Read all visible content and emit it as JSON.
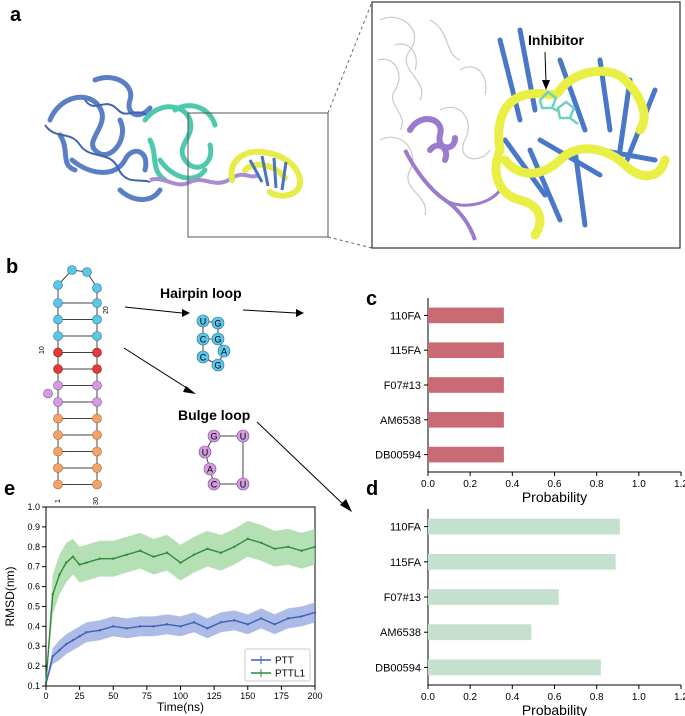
{
  "panels": {
    "a": "a",
    "b": "b",
    "c": "c",
    "d": "d",
    "e": "e"
  },
  "panel_a": {
    "zoom_label": "Inhibitor"
  },
  "panel_b": {
    "hairpin_label": "Hairpin loop",
    "bulge_label": "Bulge loop",
    "index_labels": {
      "n1": "1",
      "n10": "10",
      "n20": "20",
      "n30": "30"
    },
    "hairpin_nucleotides": [
      "U",
      "G",
      "C",
      "G",
      "C",
      "A",
      "G"
    ],
    "bulge_nucleotides": [
      "G",
      "U",
      "U",
      "A",
      "C",
      "U"
    ],
    "colors": {
      "loop": "#5cc6e8",
      "stem_red": "#e03a3a",
      "bulge": "#d39be0",
      "stem_orange": "#f2a36b"
    }
  },
  "chart_data": [
    {
      "id": "c",
      "type": "bar",
      "orientation": "horizontal",
      "categories": [
        "110FA",
        "115FA",
        "F07#13",
        "AM6538",
        "DB00594"
      ],
      "values": [
        0.36,
        0.36,
        0.36,
        0.36,
        0.36
      ],
      "xlabel": "Probability",
      "xlim": [
        0,
        1.2
      ],
      "xticks": [
        "0.0",
        "0.2",
        "0.4",
        "0.6",
        "0.8",
        "1.0",
        "1.2"
      ],
      "color": "#c96b74"
    },
    {
      "id": "d",
      "type": "bar",
      "orientation": "horizontal",
      "categories": [
        "110FA",
        "115FA",
        "F07#13",
        "AM6538",
        "DB00594"
      ],
      "values": [
        0.91,
        0.89,
        0.62,
        0.49,
        0.82
      ],
      "xlabel": "Probability",
      "xlim": [
        0,
        1.2
      ],
      "xticks": [
        "0.0",
        "0.2",
        "0.4",
        "0.6",
        "0.8",
        "1.0",
        "1.2"
      ],
      "color": "#c6e0cf"
    },
    {
      "id": "e",
      "type": "line",
      "xlabel": "Time(ns)",
      "ylabel": "RMSD(nm)",
      "xlim": [
        0,
        200
      ],
      "ylim": [
        0.1,
        1.0
      ],
      "xticks": [
        "0",
        "25",
        "50",
        "75",
        "100",
        "125",
        "150",
        "175",
        "200"
      ],
      "yticks": [
        "0.1",
        "0.2",
        "0.3",
        "0.4",
        "0.5",
        "0.6",
        "0.7",
        "0.8",
        "0.9",
        "1.0"
      ],
      "legend_position": "bottom-right",
      "series": [
        {
          "name": "PTT",
          "color": "#3f5fb5",
          "band_color": "#7f98d8",
          "x": [
            0,
            5,
            10,
            15,
            20,
            25,
            30,
            40,
            50,
            60,
            70,
            80,
            90,
            100,
            110,
            120,
            130,
            140,
            150,
            160,
            170,
            180,
            190,
            200
          ],
          "y": [
            0.11,
            0.25,
            0.28,
            0.31,
            0.33,
            0.35,
            0.37,
            0.38,
            0.4,
            0.39,
            0.4,
            0.4,
            0.41,
            0.4,
            0.42,
            0.39,
            0.42,
            0.43,
            0.41,
            0.44,
            0.41,
            0.44,
            0.45,
            0.47
          ],
          "err": [
            0.0,
            0.04,
            0.05,
            0.05,
            0.05,
            0.05,
            0.05,
            0.05,
            0.05,
            0.05,
            0.05,
            0.05,
            0.05,
            0.05,
            0.05,
            0.05,
            0.05,
            0.05,
            0.05,
            0.05,
            0.05,
            0.05,
            0.05,
            0.05
          ]
        },
        {
          "name": "PTTL1",
          "color": "#2f8a3a",
          "band_color": "#8ed08f",
          "x": [
            0,
            5,
            10,
            15,
            20,
            25,
            30,
            40,
            50,
            60,
            70,
            80,
            90,
            100,
            110,
            120,
            130,
            140,
            150,
            160,
            170,
            180,
            190,
            200
          ],
          "y": [
            0.12,
            0.56,
            0.66,
            0.72,
            0.75,
            0.71,
            0.72,
            0.74,
            0.74,
            0.76,
            0.78,
            0.75,
            0.77,
            0.72,
            0.76,
            0.79,
            0.77,
            0.8,
            0.84,
            0.82,
            0.79,
            0.8,
            0.78,
            0.8
          ],
          "err": [
            0.0,
            0.1,
            0.1,
            0.1,
            0.09,
            0.09,
            0.09,
            0.09,
            0.09,
            0.09,
            0.09,
            0.09,
            0.09,
            0.09,
            0.09,
            0.09,
            0.09,
            0.09,
            0.09,
            0.09,
            0.09,
            0.09,
            0.09,
            0.09
          ]
        }
      ]
    }
  ]
}
